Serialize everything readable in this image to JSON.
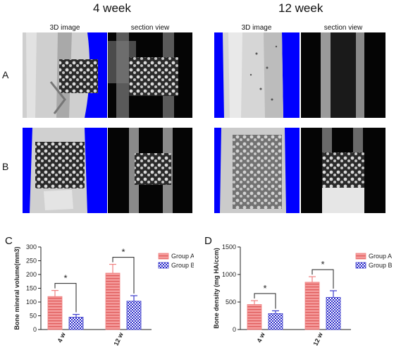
{
  "figure": {
    "week_titles": [
      "4 week",
      "12 week"
    ],
    "column_headers": [
      "3D image",
      "section view",
      "3D image",
      "section view"
    ],
    "row_labels": [
      "A",
      "B"
    ],
    "panel_labels": [
      "C",
      "D"
    ]
  },
  "colors": {
    "group_a": "#f08080",
    "group_b": "#3d3dcc",
    "render_background": "#0000ff",
    "section_background": "#050505"
  },
  "chart_data": [
    {
      "type": "bar",
      "panel": "C",
      "ylabel": "Bone mineral volume(mm3)",
      "categories": [
        "4 w",
        "12 w"
      ],
      "series": [
        {
          "name": "Group A",
          "values": [
            120,
            205
          ],
          "errors": [
            22,
            32
          ]
        },
        {
          "name": "Group B",
          "values": [
            45,
            103
          ],
          "errors": [
            10,
            20
          ]
        }
      ],
      "ylim": [
        0,
        300
      ],
      "yticks": [
        0,
        50,
        100,
        150,
        200,
        250,
        300
      ],
      "significance": [
        "*",
        "*"
      ],
      "legend": "top-right",
      "grid": false
    },
    {
      "type": "bar",
      "panel": "D",
      "ylabel": "Bone density (mg HA/ccm)",
      "categories": [
        "4 w",
        "12 w"
      ],
      "series": [
        {
          "name": "Group A",
          "values": [
            455,
            860
          ],
          "errors": [
            70,
            100
          ]
        },
        {
          "name": "Group B",
          "values": [
            290,
            585
          ],
          "errors": [
            50,
            120
          ]
        }
      ],
      "ylim": [
        0,
        1500
      ],
      "yticks": [
        0,
        500,
        1000,
        1500
      ],
      "significance": [
        "*",
        "*"
      ],
      "legend": "top-right",
      "grid": false
    }
  ]
}
